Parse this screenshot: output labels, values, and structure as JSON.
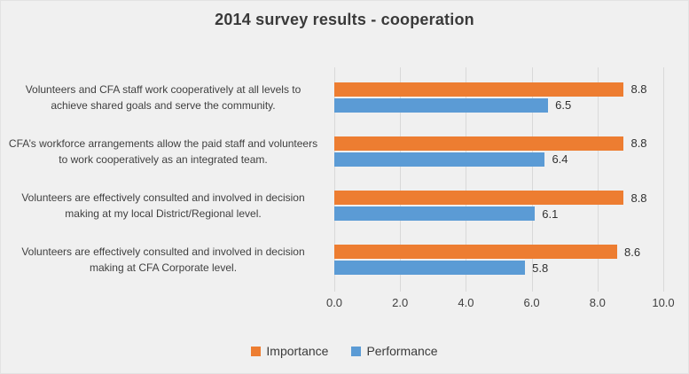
{
  "title": "2014 survey results - cooperation",
  "colors": {
    "background": "#F0F0F0",
    "gridline": "#D9D9D9",
    "importance": "#ED7D31",
    "performance": "#5B9BD5",
    "text": "#404040"
  },
  "chart_data": {
    "type": "bar",
    "orientation": "horizontal",
    "title": "2014 survey results - cooperation",
    "categories": [
      "Volunteers and CFA staff work cooperatively at all levels to achieve shared goals and serve the community.",
      "CFA’s workforce arrangements allow the paid staff and volunteers to work cooperatively as an integrated team.",
      "Volunteers are effectively consulted and involved in decision making at my local District/Regional level.",
      "Volunteers are effectively consulted and involved in decision making at CFA Corporate level."
    ],
    "series": [
      {
        "name": "Importance",
        "color": "#ED7D31",
        "values": [
          8.8,
          8.8,
          8.8,
          8.6
        ],
        "value_labels": [
          "8.8",
          "8.8",
          "8.8",
          "8.6"
        ]
      },
      {
        "name": "Performance",
        "color": "#5B9BD5",
        "values": [
          6.5,
          6.4,
          6.1,
          5.8
        ],
        "value_labels": [
          "6.5",
          "6.4",
          "6.1",
          "5.8"
        ]
      }
    ],
    "xlim": [
      0,
      10
    ],
    "x_ticks": [
      "0.0",
      "2.0",
      "4.0",
      "6.0",
      "8.0",
      "10.0"
    ],
    "grid": true,
    "legend_position": "bottom"
  }
}
